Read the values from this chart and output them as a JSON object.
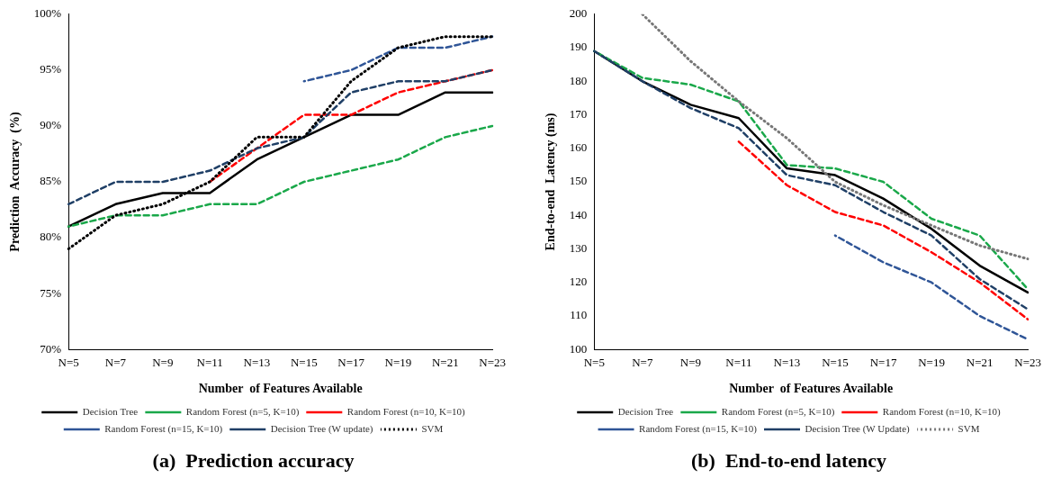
{
  "chart_data": [
    {
      "type": "line",
      "title": "(a)  Prediction accuracy",
      "xlabel": "Number  of Features Available",
      "ylabel": "Prediction  Accuracy  (%)",
      "categories": [
        "N=5",
        "N=7",
        "N=9",
        "N=11",
        "N=13",
        "N=15",
        "N=17",
        "N=19",
        "N=21",
        "N=23"
      ],
      "ylim": [
        70,
        100
      ],
      "yticks": [
        {
          "value": 70,
          "label": "70%"
        },
        {
          "value": 75,
          "label": "75%"
        },
        {
          "value": 80,
          "label": "80%"
        },
        {
          "value": 85,
          "label": "85%"
        },
        {
          "value": 90,
          "label": "90%"
        },
        {
          "value": 95,
          "label": "95%"
        },
        {
          "value": 100,
          "label": "100%"
        }
      ],
      "grid": false,
      "legend": "bottom",
      "marker": "none",
      "series": [
        {
          "name": "Decision Tree",
          "color": "#000000",
          "line_style": "solid",
          "values": [
            81,
            83,
            84,
            84,
            87,
            89,
            91,
            91,
            93,
            93
          ]
        },
        {
          "name": "Random Forest (n=5, K=10)",
          "color": "#1aa84a",
          "line_style": "dashed",
          "values": [
            81,
            82,
            82,
            83,
            83,
            85,
            86,
            87,
            89,
            90
          ]
        },
        {
          "name": "Random Forest (n=10, K=10)",
          "color": "#ff0000",
          "line_style": "dashed",
          "values": [
            null,
            null,
            null,
            85,
            88,
            91,
            91,
            93,
            94,
            95
          ]
        },
        {
          "name": "Random Forest (n=15, K=10)",
          "color": "#2f5597",
          "line_style": "dashed",
          "values": [
            null,
            null,
            null,
            null,
            null,
            94,
            95,
            97,
            97,
            98
          ]
        },
        {
          "name": "Decision Tree (W update)",
          "color": "#1f3f66",
          "line_style": "dashed",
          "values": [
            83,
            85,
            85,
            86,
            88,
            89,
            93,
            94,
            94,
            95
          ]
        },
        {
          "name": "SVM",
          "color": "#000000",
          "line_style": "dotted",
          "values": [
            79,
            82,
            83,
            85,
            89,
            89,
            94,
            97,
            98,
            98
          ]
        }
      ]
    },
    {
      "type": "line",
      "title": "(b)  End-to-end latency",
      "xlabel": "Number  of Features Available",
      "ylabel": "End-to-end  Latency (ms)",
      "categories": [
        "N=5",
        "N=7",
        "N=9",
        "N=11",
        "N=13",
        "N=15",
        "N=17",
        "N=19",
        "N=21",
        "N=23"
      ],
      "ylim": [
        100,
        200
      ],
      "yticks": [
        100,
        110,
        120,
        130,
        140,
        150,
        160,
        170,
        180,
        190,
        200
      ],
      "grid": false,
      "legend": "bottom",
      "marker": "none",
      "series": [
        {
          "name": "Decision Tree",
          "color": "#000000",
          "line_style": "solid",
          "values": [
            189,
            180,
            173,
            169,
            154,
            152,
            145,
            136,
            125,
            117
          ]
        },
        {
          "name": "Random Forest (n=5, K=10)",
          "color": "#1aa84a",
          "line_style": "dashed",
          "values": [
            189,
            181,
            179,
            174,
            155,
            154,
            150,
            139,
            134,
            118
          ]
        },
        {
          "name": "Random Forest (n=10, K=10)",
          "color": "#ff0000",
          "line_style": "dashed",
          "values": [
            null,
            null,
            null,
            162,
            149,
            141,
            137,
            129,
            120,
            109
          ]
        },
        {
          "name": "Random Forest (n=15, K=10)",
          "color": "#2f5597",
          "line_style": "dashed",
          "values": [
            null,
            null,
            null,
            null,
            null,
            134,
            126,
            120,
            110,
            103
          ]
        },
        {
          "name": "Decision Tree (W Update)",
          "color": "#1f3f66",
          "line_style": "dashed",
          "values": [
            189,
            180,
            172,
            166,
            152,
            149,
            141,
            134,
            121,
            112
          ]
        },
        {
          "name": "SVM",
          "color": "#777777",
          "line_style": "dotted",
          "values": [
            null,
            200,
            186,
            174,
            163,
            150,
            143,
            137,
            131,
            127
          ]
        }
      ]
    }
  ]
}
